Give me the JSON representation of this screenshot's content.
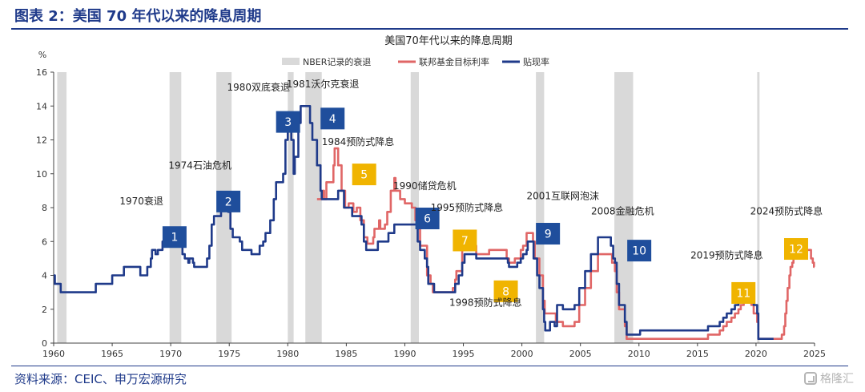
{
  "header": {
    "title": "图表 2：美国 70 年代以来的降息周期"
  },
  "footer": {
    "source": "资料来源：CEIC、申万宏源研究",
    "watermark": "格隆汇"
  },
  "chart_data": {
    "type": "line",
    "title": "美国70年代以来的降息周期",
    "ylabel": "%",
    "xlim": [
      1960,
      2025
    ],
    "ylim": [
      0,
      16
    ],
    "x_ticks": [
      "1960",
      "1965",
      "1970",
      "1975",
      "1980",
      "1985",
      "1990",
      "1995",
      "2000",
      "2005",
      "2010",
      "2015",
      "2020",
      "2025"
    ],
    "y_ticks": [
      "0",
      "2",
      "4",
      "6",
      "8",
      "10",
      "12",
      "14",
      "16"
    ],
    "legend": [
      "NBER记录的衰退",
      "联邦基金目标利率",
      "贴现率"
    ],
    "legend_position": "top",
    "colors": {
      "recession": "#d9d9d9",
      "fed_target": "#e06666",
      "discount": "#1f3a8a",
      "badge_blue": "#1f4e9c",
      "badge_gold": "#f0b400"
    },
    "recessions": [
      [
        1960.3,
        1961.1
      ],
      [
        1969.9,
        1970.9
      ],
      [
        1973.9,
        1975.2
      ],
      [
        1980.0,
        1980.5
      ],
      [
        1981.5,
        1982.9
      ],
      [
        1990.5,
        1991.2
      ],
      [
        2001.2,
        2001.9
      ],
      [
        2007.9,
        2009.5
      ],
      [
        2020.1,
        2020.3
      ]
    ],
    "series": [
      {
        "name": "贴现率",
        "points": [
          [
            1960,
            4.0
          ],
          [
            1960.1,
            3.5
          ],
          [
            1960.6,
            3.0
          ],
          [
            1963.5,
            3.0
          ],
          [
            1963.6,
            3.5
          ],
          [
            1964.9,
            3.5
          ],
          [
            1965.0,
            4.0
          ],
          [
            1965.9,
            4.0
          ],
          [
            1966.0,
            4.5
          ],
          [
            1967.3,
            4.5
          ],
          [
            1967.4,
            4.0
          ],
          [
            1967.9,
            4.0
          ],
          [
            1968.0,
            4.5
          ],
          [
            1968.3,
            5.0
          ],
          [
            1968.4,
            5.5
          ],
          [
            1968.7,
            5.25
          ],
          [
            1968.9,
            5.5
          ],
          [
            1969.3,
            6.0
          ],
          [
            1970.8,
            6.0
          ],
          [
            1970.9,
            5.75
          ],
          [
            1971.0,
            5.25
          ],
          [
            1971.2,
            5.0
          ],
          [
            1971.5,
            4.75
          ],
          [
            1971.6,
            5.0
          ],
          [
            1971.9,
            4.75
          ],
          [
            1972.0,
            4.5
          ],
          [
            1972.9,
            4.5
          ],
          [
            1973.1,
            5.0
          ],
          [
            1973.3,
            5.75
          ],
          [
            1973.5,
            7.0
          ],
          [
            1973.7,
            7.5
          ],
          [
            1974.3,
            8.0
          ],
          [
            1974.9,
            7.75
          ],
          [
            1975.1,
            6.75
          ],
          [
            1975.3,
            6.25
          ],
          [
            1975.9,
            6.0
          ],
          [
            1976.1,
            5.5
          ],
          [
            1976.9,
            5.25
          ],
          [
            1977.6,
            5.75
          ],
          [
            1977.9,
            6.0
          ],
          [
            1978.1,
            6.5
          ],
          [
            1978.5,
            7.25
          ],
          [
            1978.8,
            8.5
          ],
          [
            1979.0,
            9.5
          ],
          [
            1979.6,
            10.0
          ],
          [
            1979.8,
            12.0
          ],
          [
            1980.0,
            13.0
          ],
          [
            1980.3,
            12.0
          ],
          [
            1980.5,
            10.0
          ],
          [
            1980.6,
            11.0
          ],
          [
            1980.9,
            13.0
          ],
          [
            1981.1,
            14.0
          ],
          [
            1981.8,
            14.0
          ],
          [
            1981.9,
            13.0
          ],
          [
            1982.1,
            12.0
          ],
          [
            1982.5,
            10.5
          ],
          [
            1982.8,
            9.0
          ],
          [
            1982.9,
            8.5
          ],
          [
            1984.3,
            9.0
          ],
          [
            1984.8,
            8.0
          ],
          [
            1985.1,
            8.0
          ],
          [
            1985.5,
            7.5
          ],
          [
            1986.3,
            7.0
          ],
          [
            1986.5,
            6.0
          ],
          [
            1986.7,
            5.5
          ],
          [
            1987.7,
            6.0
          ],
          [
            1988.6,
            6.5
          ],
          [
            1989.1,
            7.0
          ],
          [
            1990.9,
            7.0
          ],
          [
            1991.1,
            6.0
          ],
          [
            1991.3,
            5.5
          ],
          [
            1991.7,
            5.0
          ],
          [
            1991.9,
            4.5
          ],
          [
            1992.0,
            3.5
          ],
          [
            1992.5,
            3.0
          ],
          [
            1994.3,
            3.5
          ],
          [
            1994.6,
            4.0
          ],
          [
            1994.9,
            4.75
          ],
          [
            1995.1,
            5.25
          ],
          [
            1996.1,
            5.0
          ],
          [
            1998.8,
            4.75
          ],
          [
            1998.9,
            4.5
          ],
          [
            1999.6,
            4.75
          ],
          [
            1999.9,
            5.0
          ],
          [
            2000.1,
            5.25
          ],
          [
            2000.4,
            5.5
          ],
          [
            2000.5,
            6.0
          ],
          [
            2001.0,
            5.0
          ],
          [
            2001.3,
            4.0
          ],
          [
            2001.5,
            3.25
          ],
          [
            2001.8,
            2.0
          ],
          [
            2001.9,
            1.25
          ],
          [
            2002.0,
            0.75
          ],
          [
            2002.3,
            0.75
          ],
          [
            2002.4,
            1.25
          ],
          [
            2002.8,
            1.0
          ],
          [
            2003.0,
            2.25
          ],
          [
            2003.5,
            2.0
          ],
          [
            2004.5,
            2.25
          ],
          [
            2004.9,
            3.25
          ],
          [
            2005.4,
            4.25
          ],
          [
            2005.9,
            5.25
          ],
          [
            2006.5,
            6.25
          ],
          [
            2007.6,
            5.75
          ],
          [
            2007.8,
            5.0
          ],
          [
            2007.95,
            4.75
          ],
          [
            2008.1,
            3.5
          ],
          [
            2008.3,
            2.25
          ],
          [
            2008.8,
            1.25
          ],
          [
            2008.95,
            0.5
          ],
          [
            2010.1,
            0.75
          ],
          [
            2015.9,
            1.0
          ],
          [
            2016.9,
            1.25
          ],
          [
            2017.2,
            1.5
          ],
          [
            2017.5,
            1.75
          ],
          [
            2017.9,
            2.0
          ],
          [
            2018.2,
            2.25
          ],
          [
            2018.5,
            2.5
          ],
          [
            2018.7,
            2.75
          ],
          [
            2018.95,
            3.0
          ],
          [
            2019.6,
            2.75
          ],
          [
            2019.8,
            2.25
          ],
          [
            2020.1,
            1.75
          ],
          [
            2020.2,
            0.25
          ],
          [
            2021.5,
            0.25
          ]
        ]
      },
      {
        "name": "联邦基金目标利率",
        "points": [
          [
            1982.5,
            8.5
          ],
          [
            1983.0,
            9.0
          ],
          [
            1983.1,
            8.5
          ],
          [
            1983.3,
            9.5
          ],
          [
            1983.6,
            9.5
          ],
          [
            1983.9,
            10.5
          ],
          [
            1984.0,
            11.5
          ],
          [
            1984.3,
            10.5
          ],
          [
            1984.6,
            9.0
          ],
          [
            1984.9,
            8.0
          ],
          [
            1985.2,
            8.25
          ],
          [
            1985.6,
            7.75
          ],
          [
            1985.9,
            8.0
          ],
          [
            1986.2,
            7.25
          ],
          [
            1986.5,
            6.25
          ],
          [
            1986.8,
            5.875
          ],
          [
            1987.3,
            6.25
          ],
          [
            1987.4,
            6.75
          ],
          [
            1987.8,
            7.25
          ],
          [
            1987.9,
            6.75
          ],
          [
            1988.3,
            7.0
          ],
          [
            1988.5,
            7.75
          ],
          [
            1988.8,
            9.0
          ],
          [
            1989.1,
            9.75
          ],
          [
            1989.2,
            9.0
          ],
          [
            1989.6,
            8.5
          ],
          [
            1990.0,
            8.25
          ],
          [
            1990.6,
            8.0
          ],
          [
            1990.9,
            7.25
          ],
          [
            1991.1,
            6.75
          ],
          [
            1991.3,
            5.75
          ],
          [
            1991.9,
            4.0
          ],
          [
            1992.2,
            3.5
          ],
          [
            1992.4,
            3.0
          ],
          [
            1994.1,
            3.25
          ],
          [
            1994.3,
            3.75
          ],
          [
            1994.4,
            4.25
          ],
          [
            1994.9,
            5.5
          ],
          [
            1995.1,
            6.0
          ],
          [
            1995.5,
            5.75
          ],
          [
            1996.1,
            5.25
          ],
          [
            1997.2,
            5.5
          ],
          [
            1998.7,
            5.0
          ],
          [
            1998.9,
            4.75
          ],
          [
            1999.4,
            5.0
          ],
          [
            1999.9,
            5.5
          ],
          [
            2000.1,
            5.75
          ],
          [
            2000.4,
            6.5
          ],
          [
            2000.95,
            6.0
          ],
          [
            2001.1,
            5.0
          ],
          [
            2001.5,
            4.0
          ],
          [
            2001.8,
            2.5
          ],
          [
            2001.95,
            1.75
          ],
          [
            2002.9,
            1.25
          ],
          [
            2003.5,
            1.0
          ],
          [
            2004.5,
            1.25
          ],
          [
            2004.9,
            2.25
          ],
          [
            2005.4,
            3.25
          ],
          [
            2005.9,
            4.25
          ],
          [
            2006.5,
            5.25
          ],
          [
            2007.7,
            4.75
          ],
          [
            2007.95,
            4.25
          ],
          [
            2008.1,
            3.0
          ],
          [
            2008.3,
            2.0
          ],
          [
            2008.8,
            1.0
          ],
          [
            2008.95,
            0.25
          ],
          [
            2015.9,
            0.5
          ],
          [
            2016.9,
            0.75
          ],
          [
            2017.2,
            1.0
          ],
          [
            2017.5,
            1.25
          ],
          [
            2017.9,
            1.5
          ],
          [
            2018.2,
            1.75
          ],
          [
            2018.5,
            2.0
          ],
          [
            2018.7,
            2.25
          ],
          [
            2018.95,
            2.5
          ],
          [
            2019.6,
            2.25
          ],
          [
            2019.8,
            1.75
          ],
          [
            2020.1,
            1.25
          ],
          [
            2020.2,
            0.25
          ],
          [
            2022.2,
            0.5
          ],
          [
            2022.4,
            1.0
          ],
          [
            2022.5,
            1.75
          ],
          [
            2022.6,
            2.5
          ],
          [
            2022.7,
            3.25
          ],
          [
            2022.85,
            4.0
          ],
          [
            2022.95,
            4.5
          ],
          [
            2023.1,
            4.75
          ],
          [
            2023.2,
            5.0
          ],
          [
            2023.4,
            5.25
          ],
          [
            2023.6,
            5.5
          ],
          [
            2024.7,
            5.0
          ],
          [
            2024.85,
            4.75
          ],
          [
            2024.95,
            4.5
          ],
          [
            2025.0,
            4.5
          ]
        ]
      }
    ],
    "annotations": [
      {
        "label": "1970衰退",
        "num": "1",
        "color": "blue",
        "year": 1969.3,
        "y": 6.9,
        "label_year": 1967.5,
        "label_y": 8.2
      },
      {
        "label": "1974石油危机",
        "num": "2",
        "color": "blue",
        "year": 1973.9,
        "y": 9.0,
        "label_year": 1972.5,
        "label_y": 10.3
      },
      {
        "label": "1980双底衰退",
        "num": "3",
        "color": "blue",
        "year": 1979.0,
        "y": 13.7,
        "label_year": 1977.5,
        "label_y": 14.9
      },
      {
        "label": "1981沃尔克衰退",
        "num": "4",
        "color": "blue",
        "year": 1982.8,
        "y": 13.9,
        "label_year": 1983.0,
        "label_y": 15.1
      },
      {
        "label": "1984预防式降息",
        "num": "5",
        "color": "gold",
        "year": 1985.5,
        "y": 10.6,
        "label_year": 1986.0,
        "label_y": 11.7
      },
      {
        "label": "1990储贷危机",
        "num": "6",
        "color": "blue",
        "year": 1990.9,
        "y": 8.0,
        "label_year": 1991.7,
        "label_y": 9.1
      },
      {
        "label": "1995预防式降息",
        "num": "7",
        "color": "gold",
        "year": 1994.1,
        "y": 6.7,
        "label_year": 1995.3,
        "label_y": 7.8
      },
      {
        "label": "1998预防式降息",
        "num": "8",
        "color": "gold",
        "year": 1997.6,
        "y": 3.7,
        "label_year": 1996.9,
        "label_y": 2.2
      },
      {
        "label": "2001互联网泡沫",
        "num": "9",
        "color": "blue",
        "year": 2001.2,
        "y": 7.1,
        "label_year": 2003.5,
        "label_y": 8.5
      },
      {
        "label": "2008金融危机",
        "num": "10",
        "color": "blue",
        "year": 2009.0,
        "y": 6.1,
        "label_year": 2008.6,
        "label_y": 7.6
      },
      {
        "label": "2019预防式降息",
        "num": "11",
        "color": "gold",
        "year": 2017.9,
        "y": 3.6,
        "label_year": 2017.5,
        "label_y": 5.0
      },
      {
        "label": "2024预防式降息",
        "num": "12",
        "color": "gold",
        "year": 2022.4,
        "y": 6.2,
        "label_year": 2022.6,
        "label_y": 7.6
      }
    ]
  }
}
